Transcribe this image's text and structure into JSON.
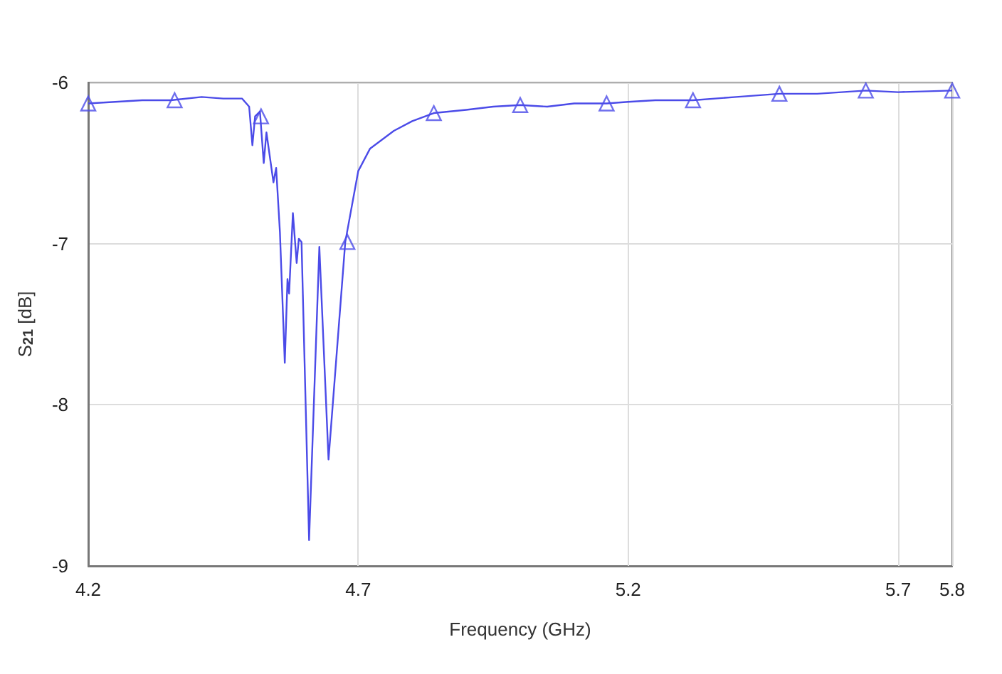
{
  "chart_data": {
    "type": "line",
    "xlabel": "Frequency (GHz)",
    "ylabel": "S$_{21}$ [dB]",
    "xlim": [
      4.2,
      5.8
    ],
    "xticks": [
      4.2,
      4.7,
      5.2,
      5.7,
      5.8
    ],
    "ylim": [
      -9,
      -6
    ],
    "yticks": [
      -9,
      -8,
      -7,
      -6
    ],
    "grid": true,
    "series": [
      {
        "color": "#4b4be8",
        "marker": "none",
        "x": [
          4.2,
          4.25,
          4.3,
          4.353,
          4.41,
          4.45,
          4.485,
          4.498,
          4.504,
          4.509,
          4.518,
          4.525,
          4.53,
          4.543,
          4.548,
          4.555,
          4.564,
          4.569,
          4.572,
          4.579,
          4.586,
          4.59,
          4.595,
          4.609,
          4.628,
          4.645,
          4.676,
          4.7,
          4.722,
          4.766,
          4.8,
          4.84,
          4.9,
          4.95,
          5.0,
          5.05,
          5.1,
          5.16,
          5.2,
          5.25,
          5.32,
          5.4,
          5.48,
          5.55,
          5.64,
          5.7,
          5.8
        ],
        "values": [
          -6.13,
          -6.12,
          -6.11,
          -6.11,
          -6.09,
          -6.1,
          -6.1,
          -6.15,
          -6.39,
          -6.21,
          -6.18,
          -6.5,
          -6.31,
          -6.62,
          -6.53,
          -6.93,
          -7.74,
          -7.22,
          -7.31,
          -6.81,
          -7.12,
          -6.97,
          -6.99,
          -8.84,
          -7.02,
          -8.34,
          -6.99,
          -6.55,
          -6.41,
          -6.3,
          -6.24,
          -6.19,
          -6.17,
          -6.15,
          -6.14,
          -6.15,
          -6.13,
          -6.13,
          -6.12,
          -6.11,
          -6.11,
          -6.09,
          -6.07,
          -6.07,
          -6.05,
          -6.06,
          -6.05
        ]
      },
      {
        "type": "scatter",
        "color": "#4b4be8",
        "marker": "triangle",
        "x": [
          4.2,
          4.36,
          4.52,
          4.68,
          4.84,
          5.0,
          5.16,
          5.32,
          5.48,
          5.64,
          5.8
        ],
        "values": [
          -6.13,
          -6.11,
          -6.21,
          -6.99,
          -6.19,
          -6.14,
          -6.13,
          -6.11,
          -6.07,
          -6.05,
          -6.05
        ]
      }
    ]
  }
}
